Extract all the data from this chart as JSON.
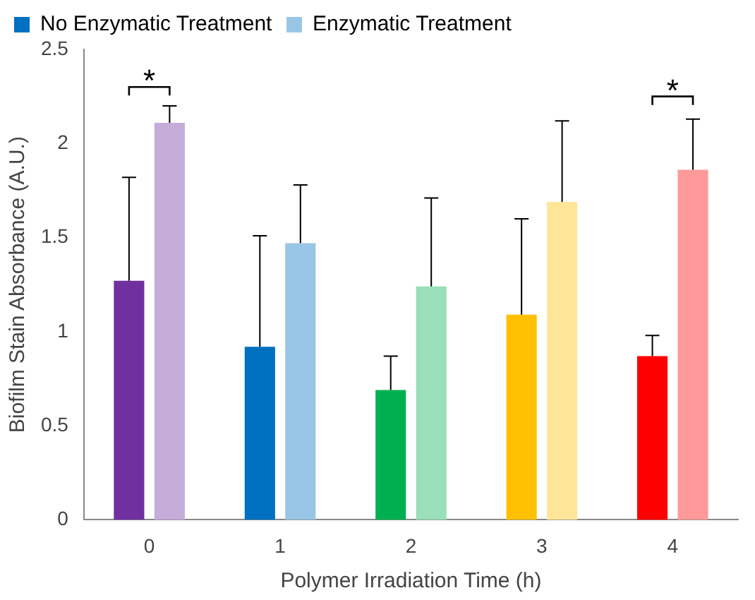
{
  "chart_data": {
    "type": "bar",
    "xlabel": "Polymer Irradiation Time (h)",
    "ylabel": "Biofilm Stain Absorbance (A.U.)",
    "categories": [
      "0",
      "1",
      "2",
      "3",
      "4"
    ],
    "series": [
      {
        "name": "No Enzymatic Treatment",
        "color": "#0070c0",
        "colors": [
          "#7030a0",
          "#0070c0",
          "#00b050",
          "#ffc000",
          "#ff0000"
        ],
        "values": [
          1.27,
          0.92,
          0.69,
          1.09,
          0.87
        ],
        "errors": [
          [
            1.27,
            1.82
          ],
          [
            0.92,
            1.51
          ],
          [
            0.69,
            0.87
          ],
          [
            1.09,
            1.6
          ],
          [
            0.87,
            0.98
          ]
        ]
      },
      {
        "name": "Enzymatic Treatment",
        "color": "#99c6e6",
        "colors": [
          "#c6acd9",
          "#99c6e6",
          "#99dfb9",
          "#ffe699",
          "#ff9999"
        ],
        "values": [
          2.11,
          1.47,
          1.24,
          1.69,
          1.86
        ],
        "errors": [
          [
            2.11,
            2.2
          ],
          [
            1.47,
            1.78
          ],
          [
            1.24,
            1.71
          ],
          [
            1.69,
            2.12
          ],
          [
            1.86,
            2.13
          ]
        ]
      }
    ],
    "ylim": [
      0,
      2.5
    ],
    "yticks": [
      0,
      0.5,
      1,
      1.5,
      2,
      2.5
    ],
    "grid": false,
    "legend": "top",
    "annotations": [
      "*",
      "*"
    ]
  }
}
